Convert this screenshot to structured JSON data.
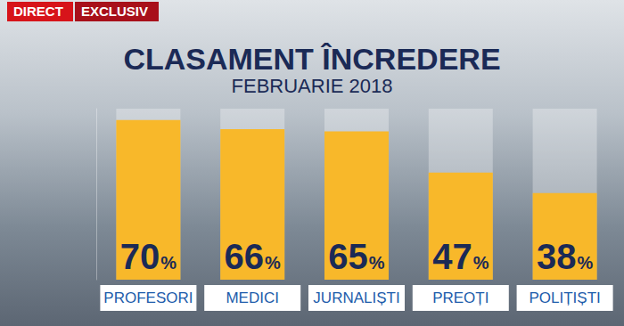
{
  "chart_data": {
    "type": "bar",
    "title": "CLASAMENT ÎNCREDERE",
    "subtitle": "FEBRUARIE 2018",
    "annotations": [
      "DIRECT",
      "EXCLUSIV"
    ],
    "categories": [
      "PROFESORI",
      "MEDICI",
      "JURNALIȘTI",
      "PREOȚI",
      "POLIȚIȘTI"
    ],
    "values": [
      70,
      66,
      65,
      47,
      38
    ],
    "value_labels": [
      "70%",
      "66%",
      "65%",
      "47%",
      "38%"
    ],
    "color": "#f8b82a",
    "ylim": [
      0,
      75
    ],
    "data_labels": true,
    "tick_labels": "x",
    "grid": false
  }
}
